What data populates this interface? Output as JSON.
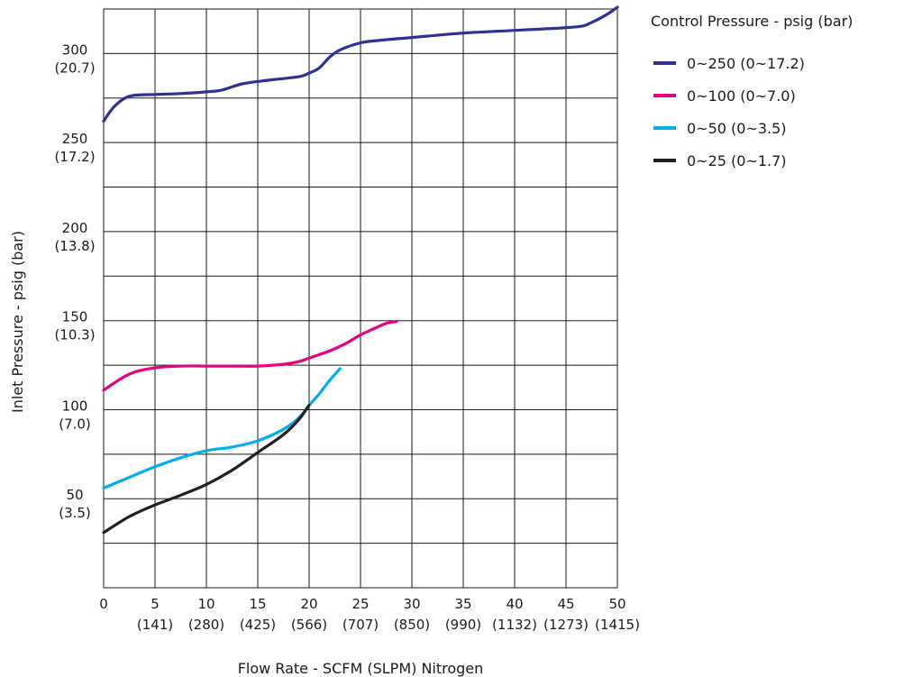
{
  "chart_data": {
    "type": "line",
    "xlabel": "Flow Rate - SCFM (SLPM) Nitrogen",
    "ylabel": "Inlet Pressure - psig (bar)",
    "xlim": [
      0,
      50
    ],
    "ylim": [
      0,
      325
    ],
    "grid": true,
    "x_ticks": [
      {
        "value": 0,
        "label": "0",
        "sub": ""
      },
      {
        "value": 5,
        "label": "5",
        "sub": "(141)"
      },
      {
        "value": 10,
        "label": "10",
        "sub": "(280)"
      },
      {
        "value": 15,
        "label": "15",
        "sub": "(425)"
      },
      {
        "value": 20,
        "label": "20",
        "sub": "(566)"
      },
      {
        "value": 25,
        "label": "25",
        "sub": "(707)"
      },
      {
        "value": 30,
        "label": "30",
        "sub": "(850)"
      },
      {
        "value": 35,
        "label": "35",
        "sub": "(990)"
      },
      {
        "value": 40,
        "label": "40",
        "sub": "(1132)"
      },
      {
        "value": 45,
        "label": "45",
        "sub": "(1273)"
      },
      {
        "value": 50,
        "label": "50",
        "sub": "(1415)"
      }
    ],
    "y_ticks": [
      {
        "value": 50,
        "label": "50",
        "sub": "(3.5)"
      },
      {
        "value": 100,
        "label": "100",
        "sub": "(7.0)"
      },
      {
        "value": 150,
        "label": "150",
        "sub": "(10.3)"
      },
      {
        "value": 200,
        "label": "200",
        "sub": "(13.8)"
      },
      {
        "value": 250,
        "label": "250",
        "sub": "(17.2)"
      },
      {
        "value": 300,
        "label": "300",
        "sub": "(20.7)"
      }
    ],
    "legend": {
      "title": "Control Pressure - psig (bar)",
      "placement": "right"
    },
    "series": [
      {
        "name": "0~250 (0~17.2)",
        "color": "#2e3192",
        "points": [
          [
            0,
            262
          ],
          [
            1,
            270
          ],
          [
            2.5,
            276
          ],
          [
            5,
            277
          ],
          [
            7.5,
            277.5
          ],
          [
            10,
            278.5
          ],
          [
            11.5,
            279.5
          ],
          [
            13.5,
            283
          ],
          [
            16,
            285
          ],
          [
            19,
            287
          ],
          [
            20,
            289
          ],
          [
            21,
            292
          ],
          [
            22,
            298
          ],
          [
            23,
            302
          ],
          [
            25,
            306
          ],
          [
            27,
            307.5
          ],
          [
            30,
            309
          ],
          [
            35,
            311.5
          ],
          [
            40,
            313
          ],
          [
            46,
            315
          ],
          [
            47.5,
            317.5
          ],
          [
            49,
            322
          ],
          [
            50,
            326
          ]
        ]
      },
      {
        "name": "0~100 (0~7.0)",
        "color": "#e6007e",
        "points": [
          [
            0,
            111
          ],
          [
            2.5,
            120
          ],
          [
            5,
            123.5
          ],
          [
            7.5,
            124.5
          ],
          [
            10,
            124.5
          ],
          [
            12.5,
            124.5
          ],
          [
            15,
            124.5
          ],
          [
            17.5,
            125.5
          ],
          [
            19,
            127
          ],
          [
            20,
            129
          ],
          [
            22,
            133
          ],
          [
            23.5,
            137
          ],
          [
            25,
            142
          ],
          [
            26.5,
            146
          ],
          [
            27.5,
            148.5
          ],
          [
            28.5,
            149.5
          ]
        ]
      },
      {
        "name": "0~50 (0~3.5)",
        "color": "#00aeef",
        "points": [
          [
            0,
            56
          ],
          [
            2.5,
            62
          ],
          [
            5,
            68
          ],
          [
            7.5,
            73
          ],
          [
            10,
            77
          ],
          [
            12.5,
            79
          ],
          [
            15,
            82.5
          ],
          [
            17.5,
            89
          ],
          [
            19,
            95.5
          ],
          [
            20,
            102.5
          ],
          [
            21,
            109
          ],
          [
            22,
            116.5
          ],
          [
            23,
            123
          ]
        ]
      },
      {
        "name": "0~25 (0~1.7)",
        "color": "#231f20",
        "points": [
          [
            0,
            31
          ],
          [
            2.5,
            40
          ],
          [
            5,
            46.5
          ],
          [
            7.5,
            52
          ],
          [
            10,
            58
          ],
          [
            12.5,
            66
          ],
          [
            15,
            76
          ],
          [
            17.5,
            86
          ],
          [
            19,
            94.5
          ],
          [
            20,
            102.5
          ]
        ]
      }
    ]
  }
}
